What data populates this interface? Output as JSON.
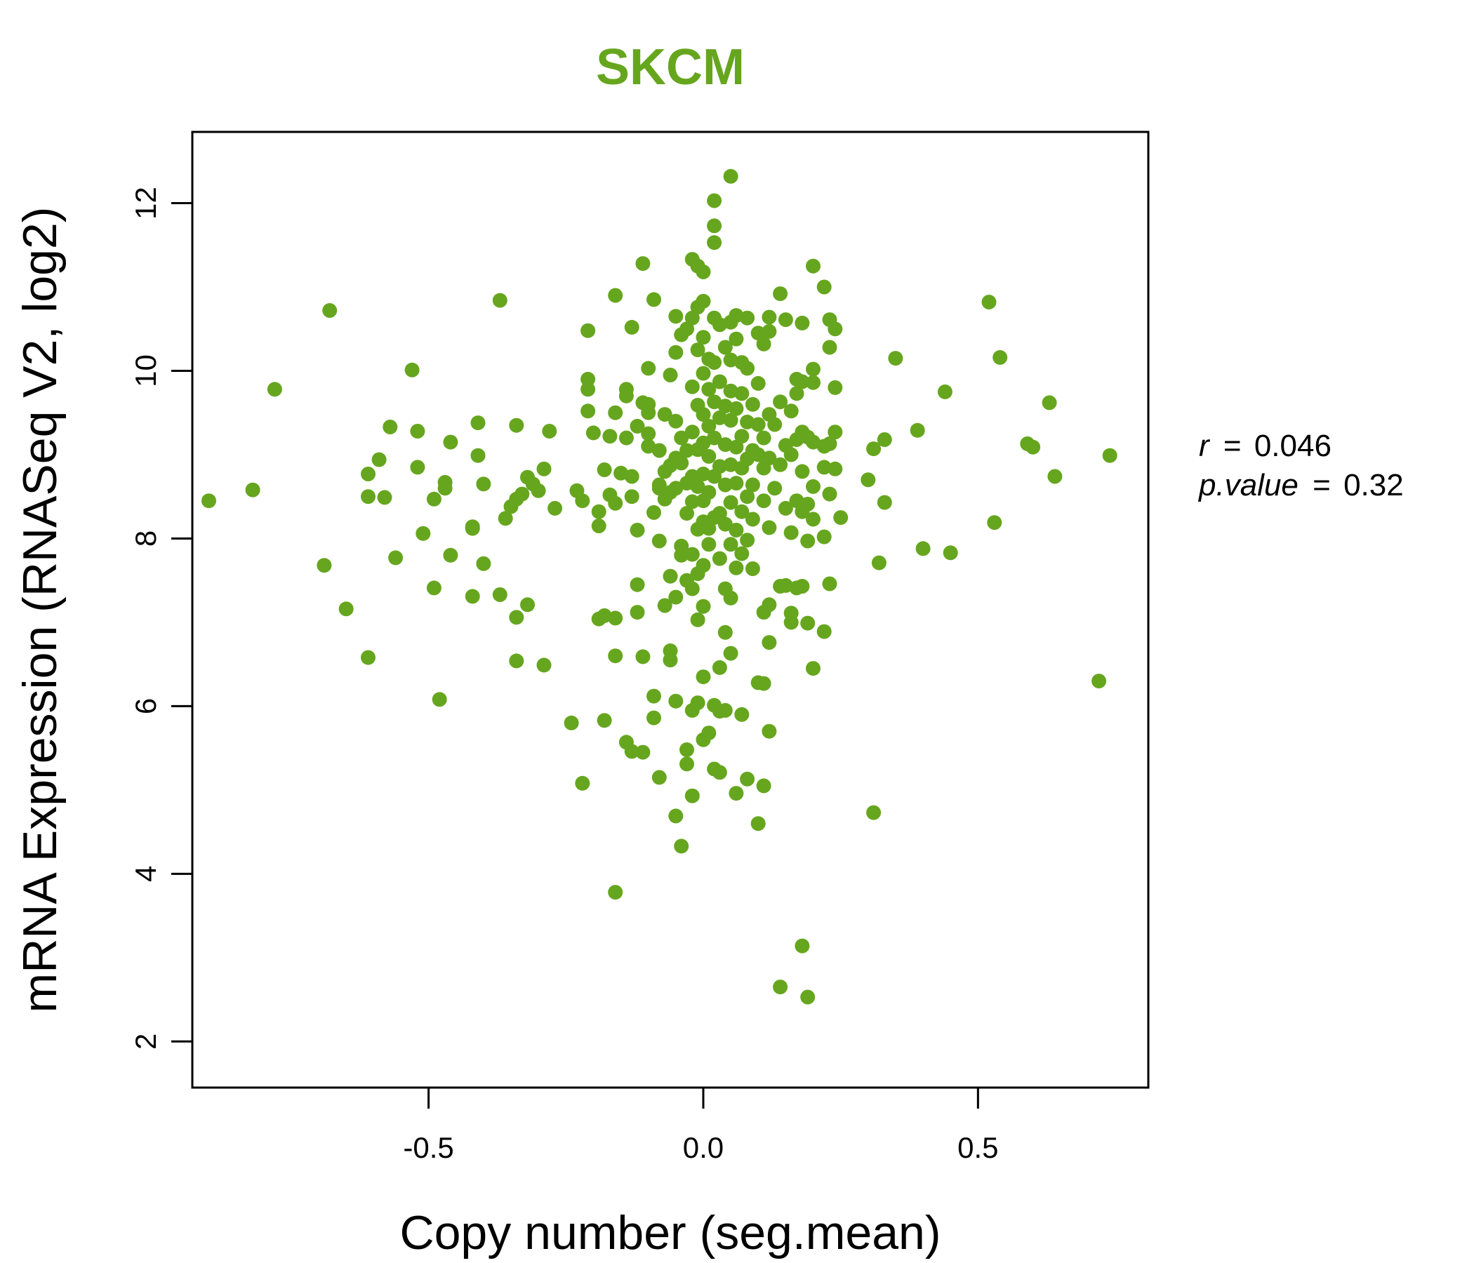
{
  "chart_data": {
    "type": "scatter",
    "title": "SKCM",
    "xlabel": "Copy number (seg.mean)",
    "ylabel": "mRNA Expression (RNASeq V2, log2)",
    "xlim": [
      -0.93,
      0.81
    ],
    "ylim": [
      1.45,
      12.85
    ],
    "xticks": [
      -0.5,
      0.0,
      0.5
    ],
    "xtick_labels": [
      "-0.5",
      "0.0",
      "0.5"
    ],
    "yticks": [
      2,
      4,
      6,
      8,
      10,
      12
    ],
    "ytick_labels": [
      "2",
      "4",
      "6",
      "8",
      "10",
      "12"
    ],
    "grid": false,
    "point_color": "#66a61e",
    "title_color": "#66a61e",
    "stats": {
      "r_label": "r",
      "r_value": "0.046",
      "p_label": "p.value",
      "p_value": "0.32"
    },
    "points": [
      [
        -0.9,
        8.45
      ],
      [
        -0.82,
        8.58
      ],
      [
        -0.78,
        9.78
      ],
      [
        -0.68,
        10.72
      ],
      [
        -0.69,
        7.68
      ],
      [
        -0.65,
        7.16
      ],
      [
        -0.61,
        6.58
      ],
      [
        -0.61,
        8.77
      ],
      [
        -0.61,
        8.5
      ],
      [
        -0.58,
        8.49
      ],
      [
        -0.59,
        8.94
      ],
      [
        -0.57,
        9.33
      ],
      [
        -0.56,
        7.77
      ],
      [
        -0.53,
        10.01
      ],
      [
        -0.52,
        9.28
      ],
      [
        -0.52,
        8.85
      ],
      [
        -0.51,
        8.06
      ],
      [
        -0.49,
        7.41
      ],
      [
        -0.49,
        8.47
      ],
      [
        -0.48,
        6.08
      ],
      [
        -0.47,
        8.67
      ],
      [
        -0.47,
        8.6
      ],
      [
        -0.46,
        9.15
      ],
      [
        -0.46,
        7.8
      ],
      [
        -0.42,
        8.12
      ],
      [
        -0.42,
        8.14
      ],
      [
        -0.42,
        7.31
      ],
      [
        -0.41,
        9.38
      ],
      [
        -0.41,
        8.99
      ],
      [
        -0.4,
        8.65
      ],
      [
        -0.4,
        7.7
      ],
      [
        -0.37,
        10.84
      ],
      [
        -0.37,
        7.33
      ],
      [
        -0.36,
        8.24
      ],
      [
        -0.35,
        8.38
      ],
      [
        -0.34,
        8.47
      ],
      [
        -0.34,
        9.35
      ],
      [
        -0.34,
        6.54
      ],
      [
        -0.33,
        8.53
      ],
      [
        -0.32,
        8.73
      ],
      [
        -0.32,
        7.21
      ],
      [
        -0.31,
        8.65
      ],
      [
        -0.3,
        8.57
      ],
      [
        -0.29,
        8.83
      ],
      [
        -0.29,
        6.49
      ],
      [
        -0.28,
        9.28
      ],
      [
        -0.27,
        8.36
      ],
      [
        -0.34,
        7.06
      ],
      [
        -0.24,
        5.8
      ],
      [
        -0.23,
        8.57
      ],
      [
        -0.22,
        5.08
      ],
      [
        -0.22,
        8.45
      ],
      [
        -0.21,
        9.78
      ],
      [
        -0.21,
        9.9
      ],
      [
        -0.21,
        10.48
      ],
      [
        -0.21,
        9.52
      ],
      [
        -0.2,
        9.26
      ],
      [
        -0.19,
        8.32
      ],
      [
        -0.19,
        8.15
      ],
      [
        -0.19,
        7.04
      ],
      [
        -0.18,
        7.08
      ],
      [
        -0.18,
        5.83
      ],
      [
        -0.18,
        8.82
      ],
      [
        -0.17,
        8.52
      ],
      [
        -0.17,
        9.22
      ],
      [
        -0.16,
        9.5
      ],
      [
        -0.16,
        8.42
      ],
      [
        -0.16,
        10.9
      ],
      [
        -0.16,
        7.05
      ],
      [
        -0.16,
        6.6
      ],
      [
        -0.16,
        3.78
      ],
      [
        -0.15,
        8.78
      ],
      [
        -0.14,
        9.2
      ],
      [
        -0.14,
        9.78
      ],
      [
        -0.14,
        9.7
      ],
      [
        -0.14,
        5.57
      ],
      [
        -0.13,
        8.5
      ],
      [
        -0.13,
        8.74
      ],
      [
        -0.13,
        10.52
      ],
      [
        -0.13,
        5.46
      ],
      [
        -0.12,
        9.34
      ],
      [
        -0.12,
        7.45
      ],
      [
        -0.12,
        8.1
      ],
      [
        -0.12,
        7.12
      ],
      [
        -0.11,
        9.62
      ],
      [
        -0.11,
        11.28
      ],
      [
        -0.11,
        5.45
      ],
      [
        -0.11,
        6.59
      ],
      [
        -0.1,
        9.1
      ],
      [
        -0.1,
        10.03
      ],
      [
        -0.1,
        9.5
      ],
      [
        -0.1,
        9.6
      ],
      [
        -0.1,
        9.25
      ],
      [
        -0.09,
        10.85
      ],
      [
        -0.09,
        8.31
      ],
      [
        -0.09,
        6.12
      ],
      [
        -0.09,
        5.86
      ],
      [
        -0.08,
        8.64
      ],
      [
        -0.08,
        8.6
      ],
      [
        -0.08,
        9.05
      ],
      [
        -0.08,
        7.97
      ],
      [
        -0.08,
        5.15
      ],
      [
        -0.07,
        8.8
      ],
      [
        -0.07,
        9.48
      ],
      [
        -0.07,
        8.47
      ],
      [
        -0.07,
        7.2
      ],
      [
        -0.06,
        8.55
      ],
      [
        -0.06,
        8.87
      ],
      [
        -0.06,
        9.95
      ],
      [
        -0.06,
        7.55
      ],
      [
        -0.06,
        6.66
      ],
      [
        -0.06,
        6.55
      ],
      [
        -0.05,
        10.65
      ],
      [
        -0.05,
        10.22
      ],
      [
        -0.05,
        9.4
      ],
      [
        -0.05,
        8.96
      ],
      [
        -0.05,
        8.6
      ],
      [
        -0.05,
        7.3
      ],
      [
        -0.05,
        6.06
      ],
      [
        -0.05,
        4.69
      ],
      [
        -0.04,
        10.43
      ],
      [
        -0.04,
        9.2
      ],
      [
        -0.04,
        8.9
      ],
      [
        -0.04,
        7.8
      ],
      [
        -0.04,
        7.91
      ],
      [
        -0.04,
        4.33
      ],
      [
        -0.03,
        10.5
      ],
      [
        -0.03,
        9.05
      ],
      [
        -0.03,
        8.66
      ],
      [
        -0.03,
        8.3
      ],
      [
        -0.03,
        7.5
      ],
      [
        -0.03,
        5.48
      ],
      [
        -0.03,
        5.31
      ],
      [
        -0.02,
        11.33
      ],
      [
        -0.02,
        10.63
      ],
      [
        -0.02,
        9.81
      ],
      [
        -0.02,
        9.27
      ],
      [
        -0.02,
        8.74
      ],
      [
        -0.02,
        8.44
      ],
      [
        -0.02,
        7.81
      ],
      [
        -0.02,
        7.4
      ],
      [
        -0.02,
        5.95
      ],
      [
        -0.02,
        4.93
      ],
      [
        -0.01,
        11.25
      ],
      [
        -0.01,
        10.76
      ],
      [
        -0.01,
        10.25
      ],
      [
        -0.01,
        9.59
      ],
      [
        -0.01,
        9.06
      ],
      [
        -0.01,
        8.62
      ],
      [
        -0.01,
        8.11
      ],
      [
        -0.01,
        7.58
      ],
      [
        -0.01,
        7.03
      ],
      [
        -0.01,
        6.04
      ],
      [
        0.0,
        11.18
      ],
      [
        0.0,
        10.83
      ],
      [
        0.0,
        10.4
      ],
      [
        0.0,
        9.97
      ],
      [
        0.0,
        9.48
      ],
      [
        0.0,
        9.14
      ],
      [
        0.0,
        8.77
      ],
      [
        0.0,
        8.45
      ],
      [
        0.0,
        8.2
      ],
      [
        0.0,
        7.68
      ],
      [
        0.0,
        7.19
      ],
      [
        0.0,
        6.35
      ],
      [
        0.0,
        5.6
      ],
      [
        0.01,
        10.14
      ],
      [
        0.01,
        9.78
      ],
      [
        0.01,
        9.34
      ],
      [
        0.01,
        8.98
      ],
      [
        0.01,
        8.55
      ],
      [
        0.01,
        8.12
      ],
      [
        0.01,
        7.93
      ],
      [
        0.01,
        5.68
      ],
      [
        0.02,
        12.03
      ],
      [
        0.02,
        11.73
      ],
      [
        0.02,
        11.53
      ],
      [
        0.02,
        10.63
      ],
      [
        0.02,
        10.1
      ],
      [
        0.02,
        9.63
      ],
      [
        0.02,
        9.2
      ],
      [
        0.02,
        8.74
      ],
      [
        0.02,
        8.25
      ],
      [
        0.02,
        6.01
      ],
      [
        0.02,
        5.25
      ],
      [
        0.03,
        10.55
      ],
      [
        0.03,
        9.87
      ],
      [
        0.03,
        9.44
      ],
      [
        0.03,
        8.86
      ],
      [
        0.03,
        8.3
      ],
      [
        0.03,
        7.76
      ],
      [
        0.03,
        6.46
      ],
      [
        0.03,
        5.94
      ],
      [
        0.03,
        5.21
      ],
      [
        0.04,
        10.28
      ],
      [
        0.04,
        9.58
      ],
      [
        0.04,
        9.12
      ],
      [
        0.04,
        8.64
      ],
      [
        0.04,
        8.17
      ],
      [
        0.04,
        7.4
      ],
      [
        0.04,
        6.88
      ],
      [
        0.04,
        5.95
      ],
      [
        0.05,
        12.32
      ],
      [
        0.05,
        10.58
      ],
      [
        0.05,
        10.13
      ],
      [
        0.05,
        9.76
      ],
      [
        0.05,
        9.41
      ],
      [
        0.05,
        8.88
      ],
      [
        0.05,
        8.43
      ],
      [
        0.05,
        7.93
      ],
      [
        0.05,
        7.29
      ],
      [
        0.05,
        6.63
      ],
      [
        0.06,
        10.66
      ],
      [
        0.06,
        10.38
      ],
      [
        0.06,
        9.55
      ],
      [
        0.06,
        9.09
      ],
      [
        0.06,
        8.66
      ],
      [
        0.06,
        8.1
      ],
      [
        0.06,
        7.65
      ],
      [
        0.06,
        4.96
      ],
      [
        0.07,
        10.1
      ],
      [
        0.07,
        9.73
      ],
      [
        0.07,
        9.22
      ],
      [
        0.07,
        8.84
      ],
      [
        0.07,
        8.32
      ],
      [
        0.07,
        7.82
      ],
      [
        0.07,
        5.9
      ],
      [
        0.08,
        10.63
      ],
      [
        0.08,
        10.03
      ],
      [
        0.08,
        9.39
      ],
      [
        0.08,
        8.95
      ],
      [
        0.08,
        8.5
      ],
      [
        0.08,
        7.98
      ],
      [
        0.08,
        5.13
      ],
      [
        0.09,
        9.6
      ],
      [
        0.09,
        9.05
      ],
      [
        0.09,
        8.64
      ],
      [
        0.09,
        8.23
      ],
      [
        0.09,
        7.64
      ],
      [
        0.1,
        10.45
      ],
      [
        0.1,
        9.85
      ],
      [
        0.1,
        9.36
      ],
      [
        0.1,
        9.0
      ],
      [
        0.1,
        6.28
      ],
      [
        0.1,
        4.6
      ],
      [
        0.11,
        10.32
      ],
      [
        0.11,
        9.2
      ],
      [
        0.11,
        8.84
      ],
      [
        0.11,
        8.45
      ],
      [
        0.11,
        7.12
      ],
      [
        0.11,
        6.27
      ],
      [
        0.11,
        5.05
      ],
      [
        0.12,
        10.64
      ],
      [
        0.12,
        10.47
      ],
      [
        0.12,
        9.48
      ],
      [
        0.12,
        8.96
      ],
      [
        0.12,
        8.13
      ],
      [
        0.12,
        7.21
      ],
      [
        0.12,
        6.76
      ],
      [
        0.12,
        5.7
      ],
      [
        0.13,
        9.36
      ],
      [
        0.13,
        8.6
      ],
      [
        0.14,
        10.92
      ],
      [
        0.14,
        9.63
      ],
      [
        0.14,
        8.88
      ],
      [
        0.14,
        7.43
      ],
      [
        0.14,
        2.65
      ],
      [
        0.15,
        10.61
      ],
      [
        0.15,
        9.11
      ],
      [
        0.15,
        8.36
      ],
      [
        0.15,
        7.44
      ],
      [
        0.16,
        9.52
      ],
      [
        0.16,
        9.0
      ],
      [
        0.16,
        8.07
      ],
      [
        0.16,
        7.11
      ],
      [
        0.16,
        7.0
      ],
      [
        0.17,
        9.9
      ],
      [
        0.17,
        9.73
      ],
      [
        0.17,
        9.18
      ],
      [
        0.17,
        8.45
      ],
      [
        0.17,
        7.41
      ],
      [
        0.18,
        10.57
      ],
      [
        0.18,
        9.87
      ],
      [
        0.18,
        9.27
      ],
      [
        0.18,
        8.8
      ],
      [
        0.18,
        8.32
      ],
      [
        0.18,
        7.43
      ],
      [
        0.18,
        3.14
      ],
      [
        0.19,
        9.21
      ],
      [
        0.19,
        8.41
      ],
      [
        0.19,
        7.97
      ],
      [
        0.19,
        6.99
      ],
      [
        0.19,
        2.53
      ],
      [
        0.2,
        11.25
      ],
      [
        0.2,
        10.02
      ],
      [
        0.2,
        9.86
      ],
      [
        0.2,
        9.15
      ],
      [
        0.2,
        8.62
      ],
      [
        0.2,
        8.23
      ],
      [
        0.2,
        6.45
      ],
      [
        0.22,
        11.0
      ],
      [
        0.22,
        9.1
      ],
      [
        0.22,
        8.85
      ],
      [
        0.22,
        8.02
      ],
      [
        0.22,
        6.89
      ],
      [
        0.23,
        10.28
      ],
      [
        0.23,
        10.61
      ],
      [
        0.23,
        9.13
      ],
      [
        0.23,
        8.53
      ],
      [
        0.23,
        7.46
      ],
      [
        0.24,
        10.5
      ],
      [
        0.24,
        9.8
      ],
      [
        0.24,
        9.27
      ],
      [
        0.24,
        8.83
      ],
      [
        0.25,
        8.25
      ],
      [
        0.3,
        8.7
      ],
      [
        0.31,
        9.07
      ],
      [
        0.31,
        4.73
      ],
      [
        0.32,
        7.71
      ],
      [
        0.33,
        9.18
      ],
      [
        0.33,
        8.43
      ],
      [
        0.35,
        10.15
      ],
      [
        0.39,
        9.29
      ],
      [
        0.4,
        7.88
      ],
      [
        0.44,
        9.75
      ],
      [
        0.45,
        7.83
      ],
      [
        0.52,
        10.82
      ],
      [
        0.53,
        8.19
      ],
      [
        0.54,
        10.16
      ],
      [
        0.59,
        9.13
      ],
      [
        0.6,
        9.09
      ],
      [
        0.63,
        9.62
      ],
      [
        0.64,
        8.74
      ],
      [
        0.72,
        6.3
      ],
      [
        0.74,
        8.99
      ]
    ]
  }
}
